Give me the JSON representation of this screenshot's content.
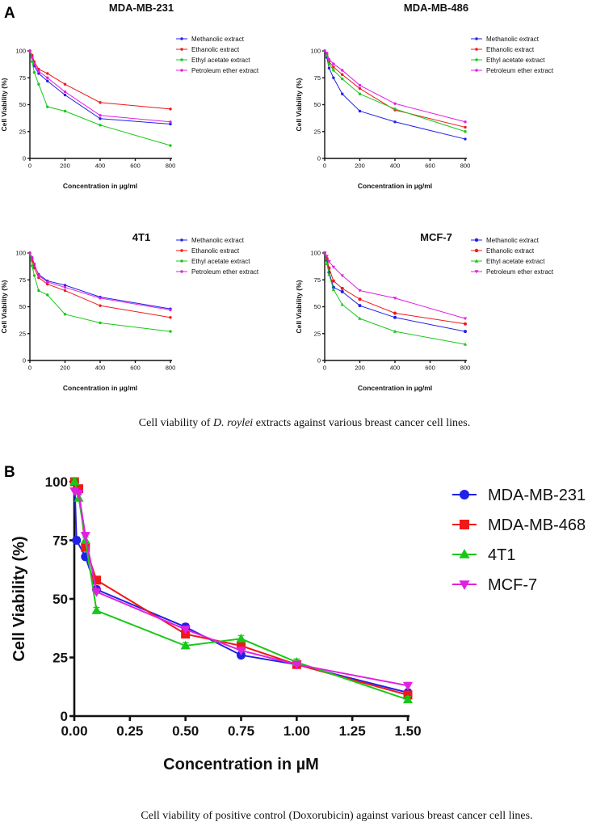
{
  "panel_a": {
    "label": "A",
    "caption_prefix": "Cell viability of ",
    "caption_species": "D. roylei",
    "caption_suffix": " extracts against various breast cancer cell lines."
  },
  "panel_b": {
    "label": "B",
    "caption": "Cell viability of positive control (Doxorubicin) against various breast cancer cell lines."
  },
  "colors": {
    "blue": "#2020e8",
    "red": "#f01818",
    "green": "#18c818",
    "magenta": "#e020e0"
  },
  "chart_data": [
    {
      "type": "line",
      "title": "MDA-MB-231",
      "xlabel": "Concentration in µg/ml",
      "ylabel": "Cell Viability (%)",
      "xlim": [
        0,
        800
      ],
      "ylim": [
        0,
        100
      ],
      "xticks": [
        0,
        200,
        400,
        600,
        800
      ],
      "yticks": [
        0,
        25,
        50,
        75,
        100
      ],
      "x": [
        0,
        12.5,
        25,
        50,
        100,
        200,
        400,
        800
      ],
      "legend_position": "top-right",
      "series": [
        {
          "name": "Methanolic extract",
          "color": "#2020e8",
          "marker": "dot",
          "values": [
            100,
            95,
            86,
            79,
            72,
            59,
            37,
            32
          ]
        },
        {
          "name": "Ethanolic extract",
          "color": "#f01818",
          "marker": "dot",
          "values": [
            100,
            96,
            90,
            83,
            79,
            69,
            52,
            46
          ]
        },
        {
          "name": "Ethyl acetate extract",
          "color": "#18c818",
          "marker": "dot",
          "values": [
            100,
            90,
            80,
            69,
            48,
            44,
            31,
            12
          ]
        },
        {
          "name": "Petroleum ether extract",
          "color": "#e020e0",
          "marker": "dot",
          "values": [
            100,
            94,
            88,
            81,
            75,
            62,
            40,
            34
          ]
        }
      ]
    },
    {
      "type": "line",
      "title": "MDA-MB-486",
      "xlabel": "Concentration in µg/ml",
      "ylabel": "Cell Viability (%)",
      "xlim": [
        0,
        800
      ],
      "ylim": [
        0,
        100
      ],
      "xticks": [
        0,
        200,
        400,
        600,
        800
      ],
      "yticks": [
        0,
        25,
        50,
        75,
        100
      ],
      "x": [
        0,
        12.5,
        25,
        50,
        100,
        200,
        400,
        800
      ],
      "legend_position": "top-right",
      "series": [
        {
          "name": "Methanolic extract",
          "color": "#2020e8",
          "marker": "dot",
          "values": [
            100,
            94,
            84,
            75,
            60,
            44,
            34,
            18
          ]
        },
        {
          "name": "Ethanolic extract",
          "color": "#f01818",
          "marker": "dot",
          "values": [
            100,
            97,
            90,
            85,
            78,
            65,
            45,
            29
          ]
        },
        {
          "name": "Ethyl acetate extract",
          "color": "#18c818",
          "marker": "dot",
          "values": [
            100,
            96,
            88,
            82,
            74,
            60,
            46,
            25
          ]
        },
        {
          "name": "Petroleum ether extract",
          "color": "#e020e0",
          "marker": "dot",
          "values": [
            100,
            98,
            92,
            88,
            82,
            68,
            51,
            34
          ]
        }
      ]
    },
    {
      "type": "line",
      "title": "4T1",
      "xlabel": "Concentration in µg/ml",
      "ylabel": "Cell Viability (%)",
      "xlim": [
        0,
        800
      ],
      "ylim": [
        0,
        100
      ],
      "xticks": [
        0,
        200,
        400,
        600,
        800
      ],
      "yticks": [
        0,
        25,
        50,
        75,
        100
      ],
      "x": [
        0,
        12.5,
        25,
        50,
        100,
        200,
        400,
        800
      ],
      "legend_position": "top-right",
      "series": [
        {
          "name": "Methanolic extract",
          "color": "#2020e8",
          "marker": "dot",
          "values": [
            100,
            95,
            89,
            80,
            74,
            70,
            59,
            48
          ]
        },
        {
          "name": "Ethanolic extract",
          "color": "#f01818",
          "marker": "dot",
          "values": [
            100,
            93,
            86,
            77,
            71,
            65,
            51,
            40
          ]
        },
        {
          "name": "Ethyl acetate extract",
          "color": "#18c818",
          "marker": "dot",
          "values": [
            100,
            88,
            79,
            65,
            61,
            43,
            35,
            27
          ]
        },
        {
          "name": "Petroleum ether extract",
          "color": "#e020e0",
          "marker": "dot",
          "values": [
            100,
            96,
            90,
            79,
            73,
            68,
            58,
            47
          ]
        }
      ]
    },
    {
      "type": "line",
      "title": "MCF-7",
      "xlabel": "Concentration in µg/ml",
      "ylabel": "Cell Viability (%)",
      "xlim": [
        0,
        800
      ],
      "ylim": [
        0,
        100
      ],
      "xticks": [
        0,
        200,
        400,
        600,
        800
      ],
      "yticks": [
        0,
        25,
        50,
        75,
        100
      ],
      "x": [
        0,
        12.5,
        25,
        50,
        100,
        200,
        400,
        800
      ],
      "legend_position": "top-right",
      "series": [
        {
          "name": "Methanolic extract",
          "color": "#2020e8",
          "marker": "dot",
          "values": [
            100,
            93,
            82,
            68,
            64,
            51,
            40,
            27
          ]
        },
        {
          "name": "Ethanolic extract",
          "color": "#f01818",
          "marker": "dot",
          "values": [
            100,
            95,
            86,
            74,
            67,
            57,
            44,
            34
          ]
        },
        {
          "name": "Ethyl acetate extract",
          "color": "#18c818",
          "marker": "triangle",
          "values": [
            100,
            90,
            80,
            66,
            52,
            39,
            27,
            15
          ]
        },
        {
          "name": "Petroleum ether extract",
          "color": "#e020e0",
          "marker": "triangle-down",
          "values": [
            100,
            97,
            92,
            87,
            79,
            65,
            58,
            39
          ]
        }
      ]
    },
    {
      "type": "line",
      "title": "",
      "xlabel": "Concentration in µM",
      "ylabel": "Cell Viability (%)",
      "xlim": [
        0,
        1.5
      ],
      "ylim": [
        0,
        100
      ],
      "xticks": [
        0.0,
        0.25,
        0.5,
        0.75,
        1.0,
        1.25,
        1.5
      ],
      "xtick_labels": [
        "0.00",
        "0.25",
        "0.50",
        "0.75",
        "1.00",
        "1.25",
        "1.50"
      ],
      "yticks": [
        0,
        25,
        50,
        75,
        100
      ],
      "legend_position": "right",
      "series": [
        {
          "name": "MDA-MB-231",
          "color": "#2020e8",
          "marker": "circle",
          "x": [
            0.001,
            0.01,
            0.05,
            0.1,
            0.5,
            0.75,
            1.0,
            1.5
          ],
          "values": [
            100,
            75,
            68,
            54,
            38,
            26,
            22,
            10
          ]
        },
        {
          "name": "MDA-MB-468",
          "color": "#f01818",
          "marker": "square",
          "x": [
            0.001,
            0.02,
            0.05,
            0.1,
            0.5,
            0.75,
            1.0,
            1.5
          ],
          "values": [
            100,
            97,
            72,
            58,
            35,
            30,
            22,
            9
          ]
        },
        {
          "name": "4T1",
          "color": "#18c818",
          "marker": "triangle",
          "x": [
            0.001,
            0.02,
            0.05,
            0.1,
            0.5,
            0.75,
            1.0,
            1.5
          ],
          "values": [
            100,
            93,
            75,
            45,
            30,
            33,
            23,
            7
          ]
        },
        {
          "name": "MCF-7",
          "color": "#e020e0",
          "marker": "triangle-down",
          "x": [
            0.001,
            0.02,
            0.05,
            0.1,
            0.5,
            0.75,
            1.0,
            1.5
          ],
          "values": [
            96,
            95,
            77,
            53,
            37,
            28,
            22,
            13
          ]
        }
      ]
    }
  ]
}
